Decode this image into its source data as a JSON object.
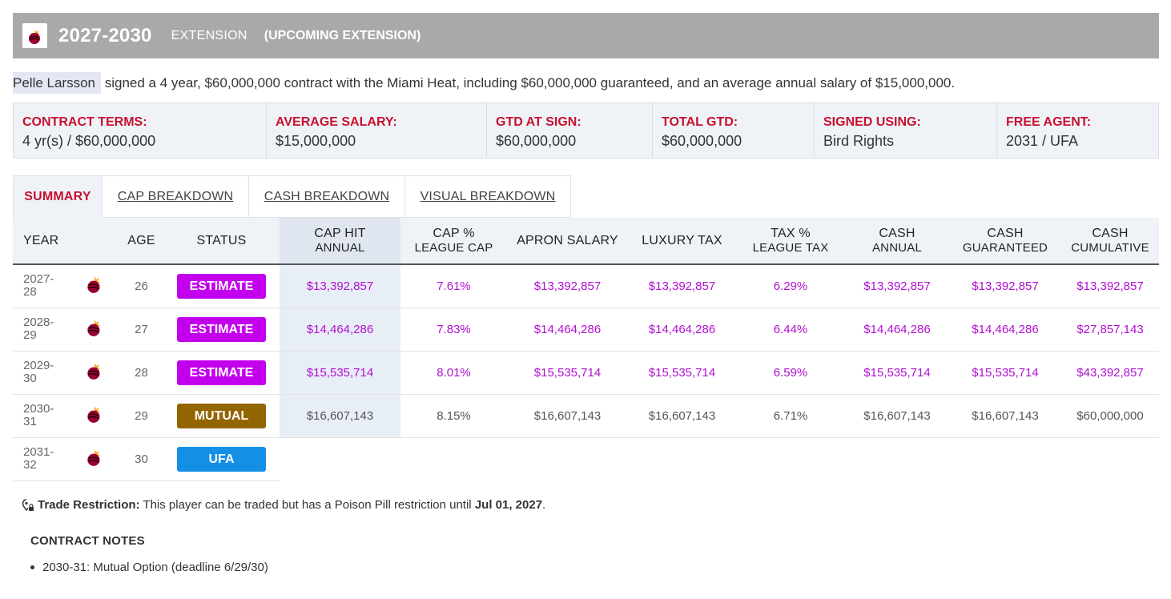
{
  "header": {
    "years": "2027-2030",
    "type": "EXTENSION",
    "subtitle": "(UPCOMING EXTENSION)"
  },
  "summary": {
    "player": "Pelle Larsson",
    "text": " signed a 4 year, $60,000,000 contract with the Miami Heat, including $60,000,000 guaranteed, and an average annual salary of $15,000,000."
  },
  "terms": [
    {
      "label": "CONTRACT TERMS:",
      "value": "4 yr(s) / $60,000,000"
    },
    {
      "label": "AVERAGE SALARY:",
      "value": "$15,000,000"
    },
    {
      "label": "GTD AT SIGN:",
      "value": "$60,000,000"
    },
    {
      "label": "TOTAL GTD:",
      "value": "$60,000,000"
    },
    {
      "label": "SIGNED USING:",
      "value": "Bird Rights"
    },
    {
      "label": "FREE AGENT:",
      "value": "2031 / UFA"
    }
  ],
  "tabs": [
    "SUMMARY",
    "CAP BREAKDOWN",
    "CASH BREAKDOWN",
    "VISUAL BREAKDOWN"
  ],
  "columns": {
    "year": "YEAR",
    "age": "AGE",
    "status": "STATUS",
    "cap_hit": [
      "CAP HIT",
      "ANNUAL"
    ],
    "cap_pct": [
      "CAP %",
      "LEAGUE CAP"
    ],
    "apron": "APRON SALARY",
    "luxury": "LUXURY TAX",
    "tax_pct": [
      "TAX %",
      "LEAGUE TAX"
    ],
    "cash_annual": [
      "CASH",
      "ANNUAL"
    ],
    "cash_gtd": [
      "CASH",
      "GUARANTEED"
    ],
    "cash_cum": [
      "CASH",
      "CUMULATIVE"
    ]
  },
  "rows": [
    {
      "year": [
        "2027-",
        "28"
      ],
      "age": "26",
      "status": "ESTIMATE",
      "cap_hit": "$13,392,857",
      "cap_pct": "7.61%",
      "apron": "$13,392,857",
      "luxury": "$13,392,857",
      "tax_pct": "6.29%",
      "cash_annual": "$13,392,857",
      "cash_gtd": "$13,392,857",
      "cash_cum": "$13,392,857"
    },
    {
      "year": [
        "2028-",
        "29"
      ],
      "age": "27",
      "status": "ESTIMATE",
      "cap_hit": "$14,464,286",
      "cap_pct": "7.83%",
      "apron": "$14,464,286",
      "luxury": "$14,464,286",
      "tax_pct": "6.44%",
      "cash_annual": "$14,464,286",
      "cash_gtd": "$14,464,286",
      "cash_cum": "$27,857,143"
    },
    {
      "year": [
        "2029-",
        "30"
      ],
      "age": "28",
      "status": "ESTIMATE",
      "cap_hit": "$15,535,714",
      "cap_pct": "8.01%",
      "apron": "$15,535,714",
      "luxury": "$15,535,714",
      "tax_pct": "6.59%",
      "cash_annual": "$15,535,714",
      "cash_gtd": "$15,535,714",
      "cash_cum": "$43,392,857"
    },
    {
      "year": [
        "2030-",
        "31"
      ],
      "age": "29",
      "status": "MUTUAL",
      "cap_hit": "$16,607,143",
      "cap_pct": "8.15%",
      "apron": "$16,607,143",
      "luxury": "$16,607,143",
      "tax_pct": "6.71%",
      "cash_annual": "$16,607,143",
      "cash_gtd": "$16,607,143",
      "cash_cum": "$60,000,000"
    },
    {
      "year": [
        "2031-",
        "32"
      ],
      "age": "30",
      "status": "UFA"
    }
  ],
  "restriction": {
    "label": "Trade Restriction:",
    "text": " This player can be traded but has a Poison Pill restriction until ",
    "date": "Jul 01, 2027",
    "end": "."
  },
  "notes": {
    "title": "CONTRACT NOTES",
    "items": [
      "2030-31: Mutual Option (deadline 6/29/30)"
    ]
  },
  "colors": {
    "estimate": "#c300ee",
    "mutual": "#936500",
    "ufa": "#138fe6",
    "accent_red": "#c8102e"
  },
  "icons": {
    "team_logo": "heat-logo-icon",
    "restriction": "location-lock-icon"
  }
}
